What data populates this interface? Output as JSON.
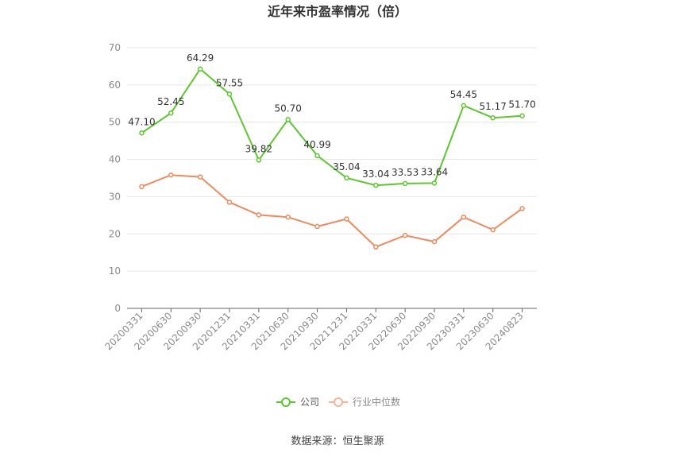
{
  "chart_data": {
    "type": "line",
    "title": "近年来市盈率情况（倍）",
    "categories": [
      "20200331",
      "20200630",
      "20200930",
      "20201231",
      "20210331",
      "20210630",
      "20210930",
      "20211231",
      "20220331",
      "20220630",
      "20220930",
      "20230331",
      "20230630",
      "20240823"
    ],
    "series": [
      {
        "name": "公司",
        "color": "#5cc830",
        "values": [
          47.1,
          52.45,
          64.29,
          57.55,
          39.82,
          50.7,
          40.99,
          35.04,
          33.04,
          33.53,
          33.64,
          54.45,
          51.17,
          51.7
        ],
        "labels": [
          "47.10",
          "52.45",
          "64.29",
          "57.55",
          "39.82",
          "50.70",
          "40.99",
          "35.04",
          "33.04",
          "33.53",
          "33.64",
          "54.45",
          "51.17",
          "51.70"
        ]
      },
      {
        "name": "行业中位数",
        "color": "#f08a5d",
        "values": [
          32.7,
          35.8,
          35.3,
          28.5,
          25.1,
          24.5,
          22.0,
          24.0,
          16.5,
          19.6,
          17.9,
          24.5,
          21.1,
          26.8
        ]
      }
    ],
    "ylim": [
      0,
      70
    ],
    "yticks": [
      "0",
      "10",
      "20",
      "30",
      "40",
      "50",
      "60",
      "70"
    ],
    "grid": true,
    "legend_position": "bottom-center",
    "source": "数据来源：恒生聚源"
  }
}
